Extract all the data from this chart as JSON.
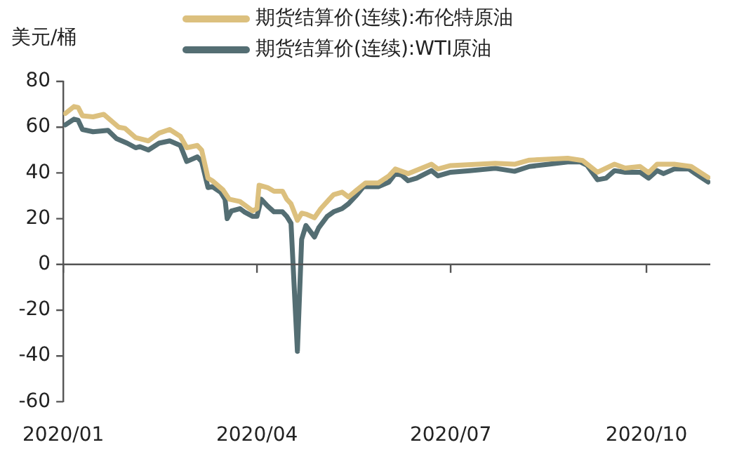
{
  "chart_data": {
    "type": "line",
    "ylabel": "美元/桶",
    "legend": "top",
    "marker": "none",
    "line_style": "solid",
    "grid": false,
    "xlim": [
      "2020-01-01",
      "2020-10-31"
    ],
    "xticks": [
      {
        "value": "2020-01-01",
        "label": "2020/01"
      },
      {
        "value": "2020-04-01",
        "label": "2020/04"
      },
      {
        "value": "2020-07-01",
        "label": "2020/07"
      },
      {
        "value": "2020-10-01",
        "label": "2020/10"
      }
    ],
    "ref_lines": [
      {
        "axis": "y",
        "value": 0,
        "color": "#555555",
        "line_style": "solid"
      }
    ],
    "ylim": [
      -60,
      80
    ],
    "yticks": [
      -60,
      -40,
      -20,
      0,
      20,
      40,
      60,
      80
    ],
    "series": [
      {
        "name": "期货结算价(连续):布伦特原油",
        "color": "#dcc07e",
        "x": [
          "2020-01-02",
          "2020-01-06",
          "2020-01-08",
          "2020-01-10",
          "2020-01-15",
          "2020-01-20",
          "2020-01-27",
          "2020-01-30",
          "2020-02-04",
          "2020-02-10",
          "2020-02-15",
          "2020-02-20",
          "2020-02-25",
          "2020-02-28",
          "2020-03-04",
          "2020-03-06",
          "2020-03-09",
          "2020-03-11",
          "2020-03-16",
          "2020-03-19",
          "2020-03-24",
          "2020-03-30",
          "2020-04-01",
          "2020-04-02",
          "2020-04-06",
          "2020-04-09",
          "2020-04-13",
          "2020-04-15",
          "2020-04-17",
          "2020-04-20",
          "2020-04-22",
          "2020-04-24",
          "2020-04-28",
          "2020-05-01",
          "2020-05-05",
          "2020-05-07",
          "2020-05-11",
          "2020-05-14",
          "2020-05-18",
          "2020-05-22",
          "2020-05-28",
          "2020-06-02",
          "2020-06-05",
          "2020-06-11",
          "2020-06-22",
          "2020-06-25",
          "2020-07-01",
          "2020-07-22",
          "2020-07-31",
          "2020-08-07",
          "2020-08-25",
          "2020-09-01",
          "2020-09-08",
          "2020-09-16",
          "2020-09-21",
          "2020-09-28",
          "2020-10-02",
          "2020-10-06",
          "2020-10-14",
          "2020-10-22",
          "2020-10-30"
        ],
        "values": [
          66,
          69,
          68.6,
          65,
          64.5,
          65.6,
          60,
          59.5,
          55.4,
          54,
          57.4,
          59,
          56,
          51,
          52,
          50,
          37.7,
          36.6,
          32.6,
          28.5,
          27.5,
          23.4,
          24.4,
          34.6,
          33.6,
          32,
          32,
          28.5,
          26.5,
          19.3,
          22.4,
          22,
          20.4,
          24.4,
          28.5,
          30.5,
          31.6,
          29.5,
          32.6,
          35.6,
          35.6,
          38.7,
          41.7,
          39.7,
          43.8,
          41.7,
          43.2,
          44.2,
          43.8,
          45.6,
          46.4,
          45.4,
          40.3,
          43.8,
          42.1,
          42.8,
          40.1,
          43.8,
          43.8,
          42.8,
          38
        ]
      },
      {
        "name": "期货结算价(连续):WTI原油",
        "color": "#546e73",
        "x": [
          "2020-01-02",
          "2020-01-06",
          "2020-01-08",
          "2020-01-10",
          "2020-01-15",
          "2020-01-22",
          "2020-01-26",
          "2020-01-31",
          "2020-02-04",
          "2020-02-06",
          "2020-02-10",
          "2020-02-15",
          "2020-02-20",
          "2020-02-25",
          "2020-02-28",
          "2020-03-04",
          "2020-03-06",
          "2020-03-09",
          "2020-03-11",
          "2020-03-15",
          "2020-03-17",
          "2020-03-18",
          "2020-03-20",
          "2020-03-24",
          "2020-03-26",
          "2020-03-30",
          "2020-04-01",
          "2020-04-03",
          "2020-04-06",
          "2020-04-09",
          "2020-04-13",
          "2020-04-15",
          "2020-04-17",
          "2020-04-20",
          "2020-04-22",
          "2020-04-24",
          "2020-04-28",
          "2020-04-30",
          "2020-05-04",
          "2020-05-07",
          "2020-05-11",
          "2020-05-14",
          "2020-05-18",
          "2020-05-21",
          "2020-05-28",
          "2020-06-02",
          "2020-06-05",
          "2020-06-08",
          "2020-06-11",
          "2020-06-15",
          "2020-06-22",
          "2020-06-25",
          "2020-07-01",
          "2020-07-10",
          "2020-07-22",
          "2020-07-31",
          "2020-08-07",
          "2020-08-16",
          "2020-08-25",
          "2020-08-31",
          "2020-09-03",
          "2020-09-08",
          "2020-09-12",
          "2020-09-16",
          "2020-09-21",
          "2020-09-28",
          "2020-10-02",
          "2020-10-06",
          "2020-10-09",
          "2020-10-14",
          "2020-10-21",
          "2020-10-24",
          "2020-10-30"
        ],
        "values": [
          61,
          63.5,
          63,
          59,
          58,
          58.6,
          55,
          53,
          51,
          51.5,
          50,
          53,
          54,
          52,
          45,
          47,
          45,
          33.6,
          34,
          31.5,
          28.5,
          20,
          23.4,
          24.4,
          23,
          21,
          21,
          28.5,
          25.5,
          23,
          23,
          21,
          18,
          -38,
          11,
          17,
          12,
          16,
          21,
          23,
          24.4,
          26.5,
          30.5,
          34,
          34,
          36,
          39.7,
          39,
          36.6,
          37.7,
          41,
          38.7,
          40.3,
          41,
          42,
          40.7,
          42.8,
          43.8,
          44.8,
          44.8,
          43.4,
          37,
          37.7,
          41,
          40.3,
          40.3,
          37.7,
          41,
          39.7,
          41.7,
          41.7,
          39.7,
          36
        ]
      }
    ]
  }
}
